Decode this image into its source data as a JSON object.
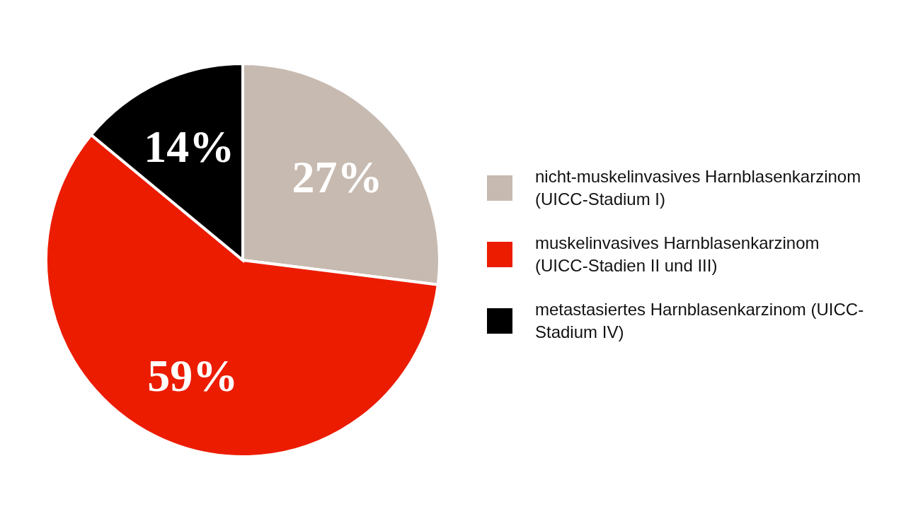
{
  "chart_data": {
    "type": "pie",
    "categories": [
      "nicht-muskelinvasives Harnblasenkarzinom (UICC-Stadium I)",
      "muskelinvasives Harnblasenkarzinom (UICC-Stadien II und III)",
      "metastasiertes Harnblasenkarzinom (UICC-Stadium IV)"
    ],
    "values": [
      27,
      59,
      14
    ],
    "colors": [
      "#c7bab0",
      "#ec1c00",
      "#000000"
    ],
    "value_labels": [
      "27%",
      "59%",
      "14%"
    ],
    "legend": "right"
  }
}
